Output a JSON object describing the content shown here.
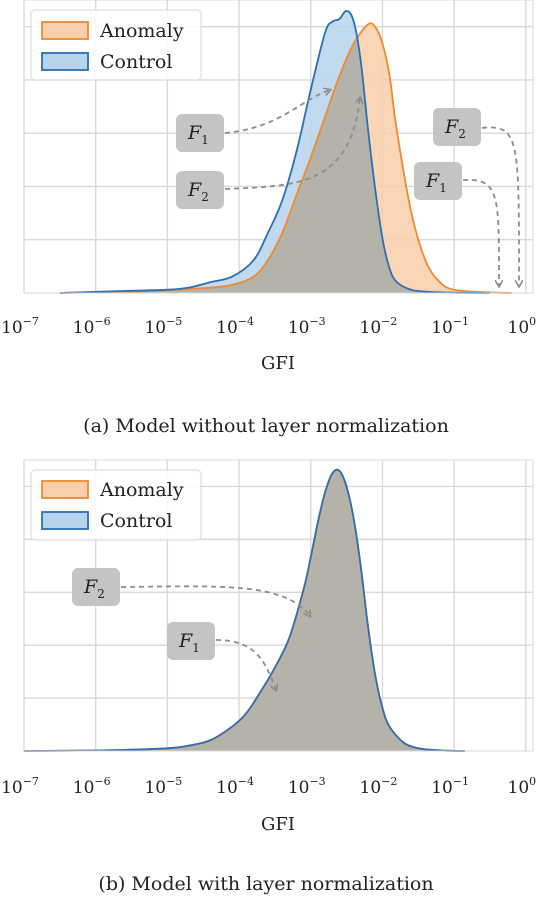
{
  "colors": {
    "anomaly_line": "#ef8a2e",
    "anomaly_fill": "#f9cfa9",
    "control_line": "#2e6fb2",
    "control_fill": "#b6d3ec",
    "overlap_fill": "#b5b2aa",
    "grid": "#d9d9d9",
    "annotation_box": "#c4c4c4",
    "arrow": "#8d8d8d"
  },
  "chart_data": [
    {
      "type": "area",
      "x_scale": "log10",
      "xlim_exponent": [
        -7,
        0.1
      ],
      "ylim": [
        0,
        1.08
      ],
      "grid": true,
      "legend_position": "top-left",
      "xlabel": "GFI",
      "caption": "(a) Model without layer normalization",
      "xticks": [
        {
          "base": "10",
          "exp": "−7"
        },
        {
          "base": "10",
          "exp": "−6"
        },
        {
          "base": "10",
          "exp": "−5"
        },
        {
          "base": "10",
          "exp": "−4"
        },
        {
          "base": "10",
          "exp": "−3"
        },
        {
          "base": "10",
          "exp": "−2"
        },
        {
          "base": "10",
          "exp": "−1"
        },
        {
          "base": "10",
          "exp": "0"
        }
      ],
      "legend": [
        "Anomaly",
        "Control"
      ],
      "series": [
        {
          "name": "Anomaly",
          "log_x": [
            -6.5,
            -5.5,
            -5.0,
            -4.7,
            -4.4,
            -4.1,
            -3.8,
            -3.6,
            -3.4,
            -3.2,
            -3.0,
            -2.8,
            -2.6,
            -2.4,
            -2.2,
            -2.1,
            -2.0,
            -1.9,
            -1.8,
            -1.6,
            -1.4,
            -1.2,
            -1.0,
            -0.6,
            -0.2
          ],
          "density": [
            0.0,
            0.005,
            0.01,
            0.015,
            0.02,
            0.03,
            0.06,
            0.12,
            0.22,
            0.36,
            0.5,
            0.65,
            0.8,
            0.92,
            0.99,
            0.98,
            0.92,
            0.8,
            0.6,
            0.3,
            0.12,
            0.04,
            0.012,
            0.003,
            0.0
          ]
        },
        {
          "name": "Control",
          "log_x": [
            -6.5,
            -5.5,
            -5.0,
            -4.7,
            -4.4,
            -4.1,
            -3.8,
            -3.6,
            -3.4,
            -3.2,
            -3.0,
            -2.8,
            -2.7,
            -2.6,
            -2.5,
            -2.4,
            -2.3,
            -2.2,
            -2.1,
            -2.0,
            -1.9,
            -1.8,
            -1.6,
            -1.4,
            -1.0,
            -0.5
          ],
          "density": [
            0.0,
            0.008,
            0.012,
            0.02,
            0.04,
            0.06,
            0.12,
            0.22,
            0.34,
            0.52,
            0.75,
            0.96,
            1.0,
            1.01,
            1.04,
            1.0,
            0.85,
            0.6,
            0.38,
            0.2,
            0.09,
            0.04,
            0.012,
            0.005,
            0.001,
            0.0
          ]
        }
      ],
      "annotations": [
        {
          "label": "F",
          "sub": "1"
        },
        {
          "label": "F",
          "sub": "2"
        },
        {
          "label": "F",
          "sub": "2"
        },
        {
          "label": "F",
          "sub": "1"
        }
      ]
    },
    {
      "type": "area",
      "x_scale": "log10",
      "xlim_exponent": [
        -7,
        0.1
      ],
      "ylim": [
        0,
        1.08
      ],
      "grid": true,
      "legend_position": "top-left",
      "xlabel": "GFI",
      "caption": "(b) Model with layer normalization",
      "xticks": [
        {
          "base": "10",
          "exp": "−7"
        },
        {
          "base": "10",
          "exp": "−6"
        },
        {
          "base": "10",
          "exp": "−5"
        },
        {
          "base": "10",
          "exp": "−4"
        },
        {
          "base": "10",
          "exp": "−3"
        },
        {
          "base": "10",
          "exp": "−2"
        },
        {
          "base": "10",
          "exp": "−1"
        },
        {
          "base": "10",
          "exp": "0"
        }
      ],
      "legend": [
        "Anomaly",
        "Control"
      ],
      "series": [
        {
          "name": "Anomaly",
          "log_x": [
            -7.0,
            -6.0,
            -5.5,
            -5.0,
            -4.7,
            -4.4,
            -4.1,
            -3.9,
            -3.7,
            -3.5,
            -3.3,
            -3.1,
            -3.0,
            -2.9,
            -2.8,
            -2.7,
            -2.6,
            -2.5,
            -2.4,
            -2.3,
            -2.2,
            -2.1,
            -2.0,
            -1.9,
            -1.7,
            -1.5,
            -1.3,
            -1.1,
            -0.85
          ],
          "density": [
            0.0,
            0.002,
            0.005,
            0.01,
            0.02,
            0.04,
            0.09,
            0.14,
            0.22,
            0.31,
            0.42,
            0.6,
            0.72,
            0.85,
            0.96,
            1.03,
            1.04,
            0.98,
            0.86,
            0.68,
            0.46,
            0.28,
            0.16,
            0.09,
            0.03,
            0.01,
            0.004,
            0.001,
            0.0
          ]
        },
        {
          "name": "Control",
          "log_x": [
            -7.0,
            -6.0,
            -5.5,
            -5.0,
            -4.7,
            -4.4,
            -4.1,
            -3.9,
            -3.7,
            -3.5,
            -3.3,
            -3.1,
            -3.0,
            -2.9,
            -2.8,
            -2.7,
            -2.6,
            -2.5,
            -2.4,
            -2.3,
            -2.2,
            -2.1,
            -2.0,
            -1.9,
            -1.7,
            -1.5,
            -1.3,
            -1.1,
            -0.85
          ],
          "density": [
            0.0,
            0.002,
            0.005,
            0.01,
            0.02,
            0.04,
            0.09,
            0.14,
            0.22,
            0.31,
            0.42,
            0.6,
            0.72,
            0.85,
            0.96,
            1.03,
            1.04,
            0.98,
            0.86,
            0.68,
            0.46,
            0.28,
            0.16,
            0.09,
            0.03,
            0.01,
            0.004,
            0.001,
            0.0
          ]
        }
      ],
      "annotations": [
        {
          "label": "F",
          "sub": "2"
        },
        {
          "label": "F",
          "sub": "1"
        }
      ]
    }
  ]
}
